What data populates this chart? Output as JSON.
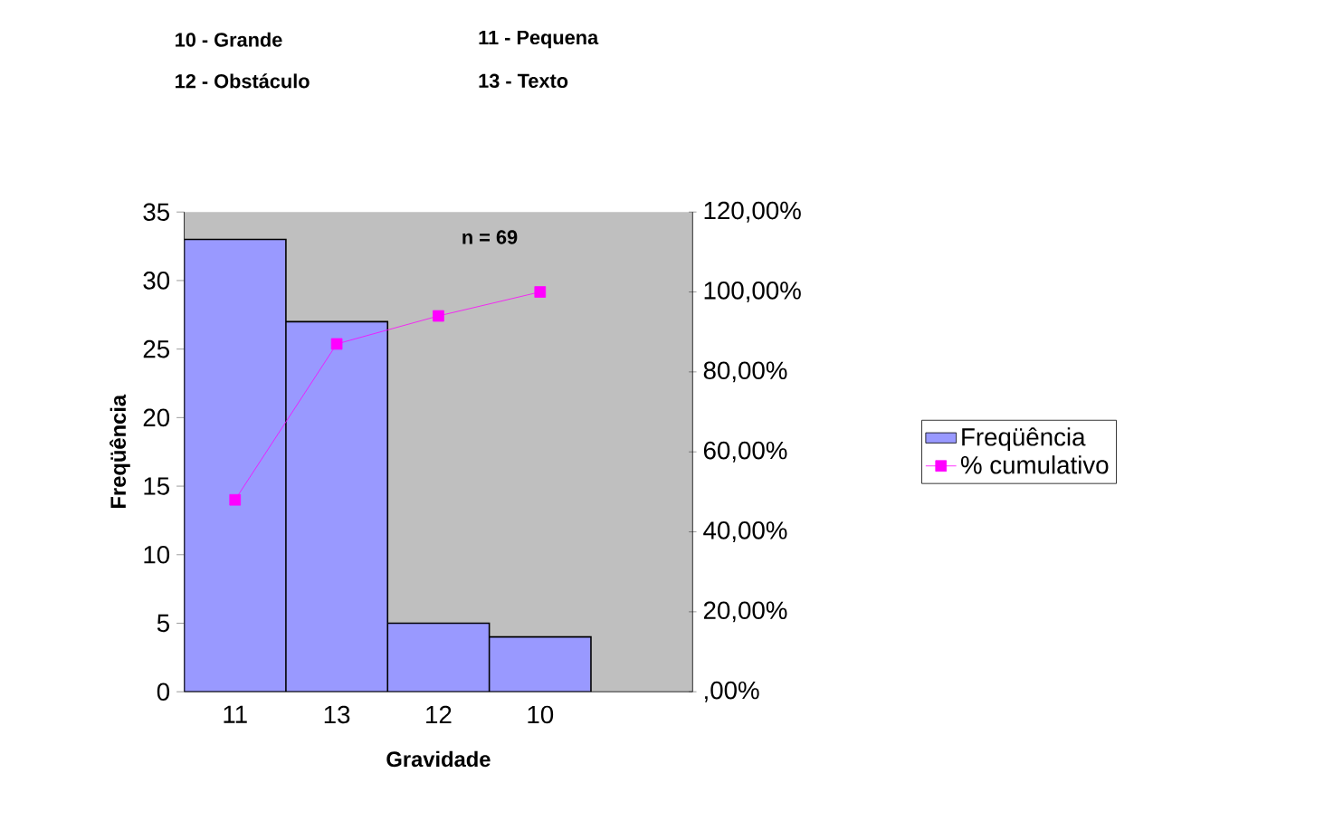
{
  "chart_data": {
    "type": "bar",
    "categories": [
      "11",
      "13",
      "12",
      "10",
      null
    ],
    "series": [
      {
        "name": "Freqüência",
        "color": "#9999ff",
        "values": [
          33,
          27,
          5,
          4,
          null
        ]
      },
      {
        "name": "% cumulativo",
        "type": "line",
        "axis": "y2",
        "color": "#ff00ff",
        "marker": "square",
        "values": [
          48,
          87,
          94,
          100,
          null
        ]
      }
    ],
    "xlabel": "Gravidade",
    "ylabel": "Freqüência",
    "ylim": [
      0,
      35
    ],
    "yticks": [
      0,
      5,
      10,
      15,
      20,
      25,
      30,
      35
    ],
    "y2lim": [
      0,
      120
    ],
    "y2ticks": [
      {
        "value": 0,
        "label": ",00%"
      },
      {
        "value": 20,
        "label": "20,00%"
      },
      {
        "value": 40,
        "label": "40,00%"
      },
      {
        "value": 60,
        "label": "60,00%"
      },
      {
        "value": 80,
        "label": "80,00%"
      },
      {
        "value": 100,
        "label": "100,00%"
      },
      {
        "value": 120,
        "label": "120,00%"
      }
    ],
    "annotations": [
      "10 - Grande",
      "11 - Pequena",
      "12 - Obstáculo",
      "13 - Texto",
      "n = 69"
    ],
    "legend": "right"
  }
}
